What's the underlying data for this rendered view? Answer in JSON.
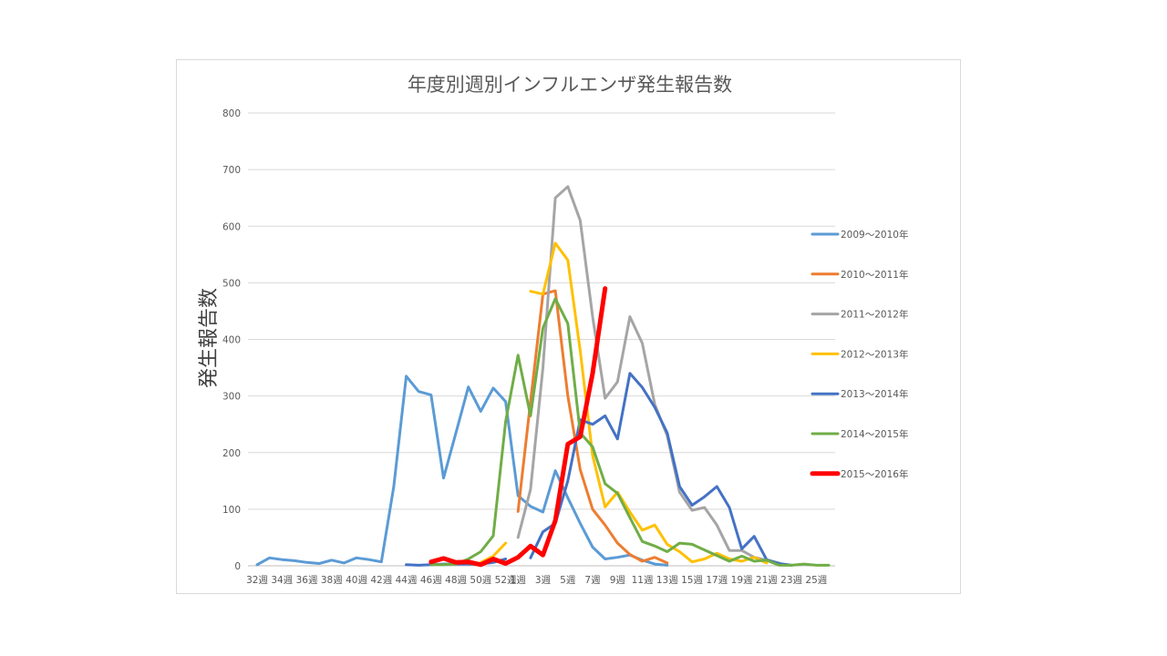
{
  "chart_data": {
    "type": "line",
    "title": "年度別週別インフルエンザ発生報告数",
    "xlabel": "",
    "ylabel": "発生報告数",
    "ylim": [
      0,
      800
    ],
    "yticks": [
      "0",
      "100",
      "200",
      "300",
      "400",
      "500",
      "600",
      "700",
      "800"
    ],
    "grid": true,
    "legend_position": "right",
    "categories": [
      "32週",
      "33週",
      "34週",
      "35週",
      "36週",
      "37週",
      "38週",
      "39週",
      "40週",
      "41週",
      "42週",
      "43週",
      "44週",
      "45週",
      "46週",
      "47週",
      "48週",
      "49週",
      "50週",
      "51週",
      "52週",
      "1週",
      "2週",
      "3週",
      "4週",
      "5週",
      "6週",
      "7週",
      "8週",
      "9週",
      "10週",
      "11週",
      "12週",
      "13週",
      "14週",
      "15週",
      "16週",
      "17週",
      "18週",
      "19週",
      "20週",
      "21週",
      "22週",
      "23週",
      "24週",
      "25週",
      "26週"
    ],
    "tick_labels": [
      "32週",
      "34週",
      "36週",
      "38週",
      "40週",
      "42週",
      "44週",
      "46週",
      "48週",
      "50週",
      "52週",
      "1週",
      "3週",
      "5週",
      "7週",
      "9週",
      "11週",
      "13週",
      "15週",
      "17週",
      "19週",
      "21週",
      "23週",
      "25週"
    ],
    "series": [
      {
        "name": "2009～2010年",
        "color": "#5b9bd5",
        "width": 3,
        "values": [
          2,
          14,
          11,
          9,
          6,
          4,
          10,
          5,
          14,
          11,
          7,
          140,
          335,
          308,
          302,
          155,
          235,
          316,
          273,
          314,
          290,
          124,
          105,
          95,
          168,
          120,
          75,
          33,
          12,
          15,
          19,
          10,
          3,
          1,
          null,
          null,
          null,
          null,
          null,
          null,
          null,
          null,
          null,
          null,
          null,
          null,
          null
        ]
      },
      {
        "name": "2010～2011年",
        "color": "#ed7d31",
        "width": 3,
        "values": [
          null,
          null,
          null,
          null,
          null,
          null,
          null,
          null,
          null,
          null,
          null,
          null,
          null,
          null,
          null,
          null,
          null,
          null,
          null,
          null,
          null,
          96,
          290,
          480,
          486,
          300,
          170,
          100,
          72,
          40,
          20,
          8,
          15,
          5,
          null,
          null,
          null,
          null,
          null,
          null,
          null,
          null,
          null,
          null,
          null,
          null,
          null
        ]
      },
      {
        "name": "2011～2012年",
        "color": "#a5a5a5",
        "width": 3,
        "values": [
          null,
          null,
          null,
          null,
          null,
          null,
          null,
          null,
          null,
          null,
          null,
          null,
          null,
          null,
          null,
          null,
          null,
          null,
          null,
          null,
          null,
          50,
          135,
          350,
          650,
          670,
          610,
          440,
          296,
          325,
          440,
          393,
          285,
          230,
          130,
          98,
          103,
          72,
          27,
          27,
          15,
          10,
          5,
          null,
          null,
          null,
          null
        ]
      },
      {
        "name": "2012～2013年",
        "color": "#ffc000",
        "width": 3,
        "values": [
          null,
          null,
          null,
          null,
          null,
          null,
          null,
          null,
          null,
          null,
          null,
          null,
          null,
          null,
          null,
          null,
          null,
          null,
          6,
          17,
          40,
          null,
          485,
          480,
          570,
          540,
          380,
          195,
          104,
          130,
          95,
          63,
          72,
          38,
          25,
          7,
          12,
          22,
          12,
          8,
          15,
          5,
          null,
          null,
          null,
          null,
          null
        ]
      },
      {
        "name": "2013～2014年",
        "color": "#4472c4",
        "width": 3,
        "values": [
          null,
          null,
          null,
          null,
          null,
          null,
          null,
          null,
          null,
          null,
          null,
          null,
          2,
          1,
          2,
          3,
          3,
          3,
          3,
          6,
          12,
          null,
          14,
          60,
          75,
          150,
          258,
          250,
          265,
          224,
          340,
          315,
          280,
          235,
          140,
          107,
          122,
          140,
          103,
          30,
          52,
          11,
          4,
          1,
          null,
          null,
          null
        ]
      },
      {
        "name": "2014～2015年",
        "color": "#70ad47",
        "width": 3,
        "values": [
          null,
          null,
          null,
          null,
          null,
          null,
          null,
          null,
          null,
          null,
          null,
          null,
          null,
          null,
          2,
          2,
          3,
          12,
          25,
          53,
          255,
          372,
          265,
          420,
          472,
          428,
          235,
          210,
          145,
          128,
          85,
          43,
          35,
          25,
          40,
          38,
          28,
          18,
          8,
          17,
          8,
          10,
          1,
          1,
          3,
          1,
          1
        ]
      },
      {
        "name": "2015～2016年",
        "color": "#ff0000",
        "width": 5,
        "values": [
          null,
          null,
          null,
          null,
          null,
          null,
          null,
          null,
          null,
          null,
          null,
          null,
          null,
          null,
          7,
          13,
          6,
          7,
          2,
          12,
          4,
          15,
          35,
          19,
          80,
          215,
          228,
          340,
          490,
          null,
          null,
          null,
          null,
          null,
          null,
          null,
          null,
          null,
          null,
          null,
          null,
          null,
          null,
          null,
          null,
          null,
          null
        ]
      }
    ]
  }
}
